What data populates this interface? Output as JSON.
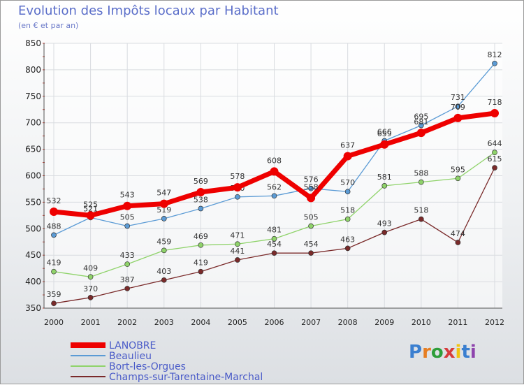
{
  "chart_data": {
    "type": "line",
    "title": "Evolution des Impôts locaux par Habitant",
    "subtitle": "(en € et par an)",
    "x": [
      "2000",
      "2001",
      "2002",
      "2003",
      "2004",
      "2005",
      "2006",
      "2007",
      "2008",
      "2009",
      "2010",
      "2011",
      "2012"
    ],
    "ylim": [
      350,
      850
    ],
    "yticks": [
      350,
      400,
      450,
      500,
      550,
      600,
      650,
      700,
      750,
      800,
      850
    ],
    "series": [
      {
        "name": "LANOBRE",
        "color": "#ee0000",
        "emphasis": true,
        "values": [
          532,
          525,
          543,
          547,
          569,
          578,
          608,
          558,
          637,
          659,
          681,
          709,
          718
        ],
        "labels": [
          "532",
          "525",
          "543",
          "547",
          "569",
          "578",
          "608",
          "558",
          "637",
          "659",
          "681",
          "709",
          "718"
        ]
      },
      {
        "name": "Beaulieu",
        "color": "#5b9bd5",
        "values": [
          488,
          521,
          505,
          519,
          538,
          560,
          562,
          576,
          570,
          666,
          695,
          731,
          812
        ],
        "labels": [
          "488",
          "521",
          "505",
          "519",
          "538",
          "560",
          "562",
          "576",
          "570",
          "666",
          "695",
          "731",
          "812"
        ]
      },
      {
        "name": "Bort-les-Orgues",
        "color": "#8fd36a",
        "values": [
          419,
          409,
          433,
          459,
          469,
          471,
          481,
          505,
          518,
          581,
          588,
          595,
          644
        ],
        "labels": [
          "419",
          "409",
          "433",
          "459",
          "469",
          "471",
          "481",
          "505",
          "518",
          "581",
          "588",
          "595",
          "644"
        ]
      },
      {
        "name": "Champs-sur-Tarentaine-Marchal",
        "color": "#7a2a2a",
        "values": [
          359,
          370,
          387,
          403,
          419,
          441,
          454,
          454,
          463,
          493,
          518,
          474,
          615
        ],
        "labels": [
          "359",
          "370",
          "387",
          "403",
          "419",
          "441",
          "454",
          "454",
          "463",
          "493",
          "518",
          "474",
          "615"
        ]
      }
    ]
  },
  "logo": {
    "letters": [
      "P",
      "r",
      "o",
      "x",
      "i",
      "t",
      "i"
    ],
    "colors": [
      "#3a7fd0",
      "#e67e22",
      "#2e9e3a",
      "#d63b3b",
      "#f1c40f",
      "#3a7fd0",
      "#8e44ad"
    ]
  }
}
